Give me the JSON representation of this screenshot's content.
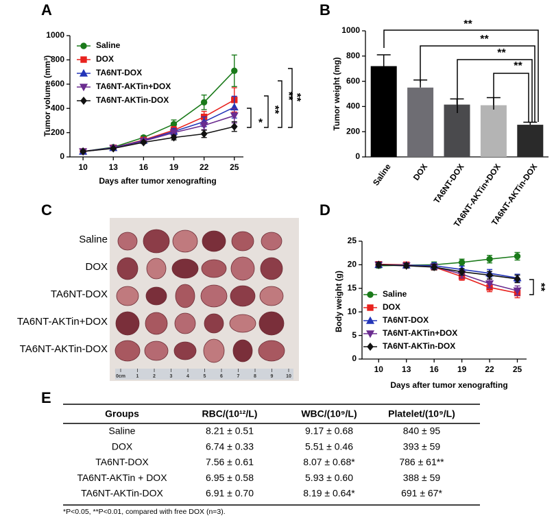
{
  "chart_data": [
    {
      "type": "line",
      "panel_label": "A",
      "x_label": "Days after tumor xenografting",
      "y_label": "Tumor volume (mm³)",
      "x": [
        10,
        13,
        16,
        19,
        22,
        25
      ],
      "xlim": [
        8.7,
        25.9
      ],
      "xticks": [
        10,
        13,
        16,
        19,
        22,
        25
      ],
      "ylim": [
        0,
        1000
      ],
      "yticks": [
        0,
        200,
        400,
        600,
        800,
        1000
      ],
      "legend": "upper left",
      "series": [
        {
          "name": "Saline",
          "color": "#1a7a1a",
          "marker": "circle",
          "values": [
            45,
            80,
            160,
            270,
            450,
            710
          ],
          "errors": [
            8,
            10,
            15,
            35,
            60,
            130
          ]
        },
        {
          "name": "DOX",
          "color": "#e8221e",
          "marker": "square",
          "values": [
            45,
            75,
            140,
            220,
            330,
            470
          ],
          "errors": [
            6,
            8,
            12,
            30,
            45,
            100
          ]
        },
        {
          "name": "TA6NT-DOX",
          "color": "#2335b8",
          "marker": "triangle-up",
          "values": [
            45,
            75,
            135,
            210,
            290,
            410
          ],
          "errors": [
            6,
            8,
            12,
            25,
            40,
            90
          ]
        },
        {
          "name": "TA6NT-AKTin+DOX",
          "color": "#6a2c8f",
          "marker": "triangle-down",
          "values": [
            45,
            72,
            130,
            200,
            260,
            340
          ],
          "errors": [
            6,
            8,
            12,
            25,
            35,
            60
          ]
        },
        {
          "name": "TA6NT-AKTin-DOX",
          "color": "#111111",
          "marker": "diamond",
          "values": [
            45,
            70,
            120,
            160,
            190,
            250
          ],
          "errors": [
            5,
            6,
            10,
            20,
            30,
            40
          ]
        }
      ],
      "annotations": [
        "*",
        "**",
        "**",
        "**"
      ]
    },
    {
      "type": "bar",
      "panel_label": "B",
      "y_label": "Tumor weight (mg)",
      "categories": [
        "Saline",
        "DOX",
        "TA6NT-DOX",
        "TA6NT-AKTin+DOX",
        "TA6NT-AKTin-DOX"
      ],
      "values": [
        720,
        550,
        415,
        410,
        255
      ],
      "errors": [
        90,
        60,
        45,
        60,
        20
      ],
      "colors": [
        "#000000",
        "#6e6d73",
        "#4a4a4d",
        "#b4b4b4",
        "#2a2a2a"
      ],
      "ylim": [
        0,
        1000
      ],
      "yticks": [
        0,
        200,
        400,
        600,
        800,
        1000
      ],
      "annotations": [
        "**",
        "**",
        "**",
        "**"
      ]
    },
    {
      "type": "line",
      "panel_label": "D",
      "x_label": "Days after tumor xenografting",
      "y_label": "Body weight (g)",
      "x": [
        10,
        13,
        16,
        19,
        22,
        25
      ],
      "xlim": [
        8.2,
        26
      ],
      "xticks": [
        10,
        13,
        16,
        19,
        22,
        25
      ],
      "ylim": [
        0,
        25
      ],
      "yticks": [
        0,
        5,
        10,
        15,
        20,
        25
      ],
      "legend": "lower left",
      "series": [
        {
          "name": "Saline",
          "color": "#1a7a1a",
          "marker": "circle",
          "values": [
            19.8,
            19.9,
            20,
            20.5,
            21.2,
            21.8
          ],
          "errors": [
            0.5,
            0.5,
            0.6,
            0.7,
            0.8,
            0.8
          ]
        },
        {
          "name": "DOX",
          "color": "#e8221e",
          "marker": "square",
          "values": [
            20.1,
            20,
            19.5,
            17.5,
            15.2,
            14
          ],
          "errors": [
            0.5,
            0.5,
            0.6,
            0.8,
            0.9,
            1.0
          ]
        },
        {
          "name": "TA6NT-DOX",
          "color": "#2335b8",
          "marker": "triangle-up",
          "values": [
            20,
            19.9,
            19.8,
            19,
            18.2,
            17.2
          ],
          "errors": [
            0.5,
            0.5,
            0.6,
            0.7,
            0.8,
            0.8
          ]
        },
        {
          "name": "TA6NT-AKTin+DOX",
          "color": "#6a2c8f",
          "marker": "triangle-down",
          "values": [
            20,
            19.8,
            19.6,
            18,
            16,
            14.5
          ],
          "errors": [
            0.5,
            0.5,
            0.6,
            0.8,
            0.9,
            1.0
          ]
        },
        {
          "name": "TA6NT-AKTin-DOX",
          "color": "#111111",
          "marker": "diamond",
          "values": [
            20,
            19.8,
            19.5,
            18.5,
            17.8,
            17
          ],
          "errors": [
            0.5,
            0.5,
            0.6,
            0.7,
            0.8,
            0.8
          ]
        }
      ],
      "annotations": [
        "**"
      ]
    }
  ],
  "photo": {
    "panel_label": "C",
    "row_labels": [
      "Saline",
      "DOX",
      "TA6NT-DOX",
      "TA6NT-AKTin+DOX",
      "TA6NT-AKTin-DOX"
    ],
    "scale_labels": [
      "0cm",
      "1",
      "2",
      "3",
      "4",
      "5",
      "6",
      "7",
      "8",
      "9",
      "10"
    ]
  },
  "table": {
    "panel_label": "E",
    "columns": [
      "Groups",
      "RBC/(10¹²/L)",
      "WBC/(10⁹/L)",
      "Platelet/(10⁹/L)"
    ],
    "rows": [
      [
        "Saline",
        "8.21 ± 0.51",
        "9.17 ± 0.68",
        "840 ± 95"
      ],
      [
        "DOX",
        "6.74 ± 0.33",
        "5.51 ± 0.46",
        "393 ± 59"
      ],
      [
        "TA6NT-DOX",
        "7.56 ± 0.61",
        "8.07 ± 0.68*",
        "786 ± 61**"
      ],
      [
        "TA6NT-AKTin + DOX",
        "6.95 ± 0.58",
        "5.93 ± 0.60",
        "388 ± 59"
      ],
      [
        "TA6NT-AKTin-DOX",
        "6.91 ± 0.70",
        "8.19 ± 0.64*",
        "691 ± 67*"
      ]
    ],
    "footnote": "*P<0.05, **P<0.01, compared with free DOX (n=3)."
  }
}
